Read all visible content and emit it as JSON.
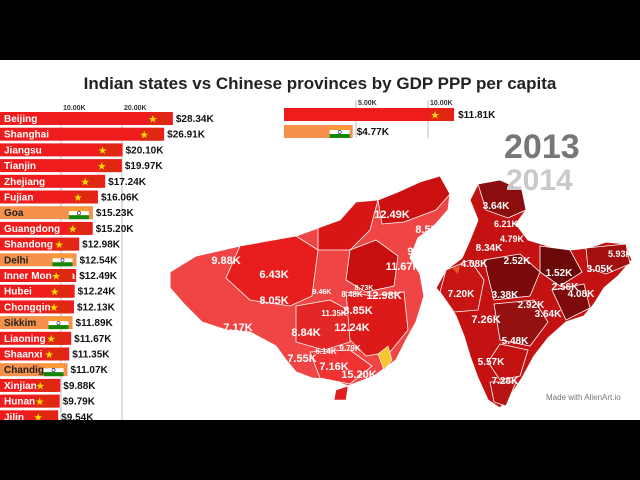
{
  "title": "Indian states vs Chinese provinces  by GDP PPP per capita",
  "years": {
    "current": "2013",
    "next": "2014"
  },
  "watermark": "Made with AlienArt.io",
  "colors": {
    "china": "#ee1c1c",
    "india": "#f5914a",
    "country_bar_china": "#ee1c1c",
    "country_bar_india": "#f5914a",
    "map_china_dark": "#b50d0d",
    "map_china_light": "#f04545",
    "map_india_dark": "#6e0a0a",
    "map_india_light": "#c41212"
  },
  "chart_data": [
    {
      "type": "bar",
      "orientation": "horizontal",
      "title": "Indian states vs Chinese provinces  by GDP PPP per capita",
      "x_ticks": [
        "10.00K",
        "20.00K"
      ],
      "x_tick_values": [
        10,
        20
      ],
      "unit": "K",
      "flag_icons": {
        "China": "china-flag-icon",
        "India": "india-flag-icon"
      },
      "bars": [
        {
          "name": "Beijing",
          "value": 28.34,
          "label": "$28.34K",
          "country": "China"
        },
        {
          "name": "Shanghai",
          "value": 26.91,
          "label": "$26.91K",
          "country": "China"
        },
        {
          "name": "Jiangsu",
          "value": 20.1,
          "label": "$20.10K",
          "country": "China"
        },
        {
          "name": "Tianjin",
          "value": 19.97,
          "label": "$19.97K",
          "country": "China"
        },
        {
          "name": "Zhejiang",
          "value": 17.24,
          "label": "$17.24K",
          "country": "China"
        },
        {
          "name": "Fujian",
          "value": 16.06,
          "label": "$16.06K",
          "country": "China"
        },
        {
          "name": "Goa",
          "value": 15.23,
          "label": "$15.23K",
          "country": "India"
        },
        {
          "name": "Guangdong",
          "value": 15.2,
          "label": "$15.20K",
          "country": "China"
        },
        {
          "name": "Shandong",
          "value": 12.98,
          "label": "$12.98K",
          "country": "China"
        },
        {
          "name": "Delhi",
          "value": 12.54,
          "label": "$12.54K",
          "country": "India"
        },
        {
          "name": "Inner Mongolia",
          "value": 12.49,
          "label": "$12.49K",
          "country": "China"
        },
        {
          "name": "Hubei",
          "value": 12.24,
          "label": "$12.24K",
          "country": "China"
        },
        {
          "name": "Chongqing",
          "value": 12.13,
          "label": "$12.13K",
          "country": "China"
        },
        {
          "name": "Sikkim",
          "value": 11.89,
          "label": "$11.89K",
          "country": "India"
        },
        {
          "name": "Liaoning",
          "value": 11.67,
          "label": "$11.67K",
          "country": "China"
        },
        {
          "name": "Shaanxi",
          "value": 11.35,
          "label": "$11.35K",
          "country": "China"
        },
        {
          "name": "Chandigarh",
          "value": 11.07,
          "label": "$11.07K",
          "country": "India"
        },
        {
          "name": "Xinjiang",
          "value": 9.88,
          "label": "$9.88K",
          "country": "China"
        },
        {
          "name": "Hunan",
          "value": 9.79,
          "label": "$9.79K",
          "country": "China"
        },
        {
          "name": "Jilin",
          "value": 9.54,
          "label": "$9.54K",
          "country": "China"
        }
      ]
    },
    {
      "type": "bar",
      "orientation": "horizontal",
      "x_ticks": [
        "5.00K",
        "10.00K"
      ],
      "x_tick_values": [
        5,
        10
      ],
      "unit": "K",
      "bars": [
        {
          "country": "China",
          "value": 11.81,
          "label": "$11.81K",
          "flag_icon": "china-flag-icon"
        },
        {
          "country": "India",
          "value": 4.77,
          "label": "$4.77K",
          "flag_icon": "india-flag-icon"
        }
      ]
    },
    {
      "type": "heatmap",
      "subtype": "choropleth-map",
      "regions": "China provinces and India states",
      "labels": [
        {
          "text": "12.49K",
          "value": 12.49,
          "country": "China"
        },
        {
          "text": "8.57K",
          "value": 8.57,
          "country": "China"
        },
        {
          "text": "9.54K",
          "value": 9.54,
          "country": "China"
        },
        {
          "text": "9.88K",
          "value": 9.88,
          "country": "China"
        },
        {
          "text": "11.67K",
          "value": 11.67,
          "country": "China"
        },
        {
          "text": "6.43K",
          "value": 6.43,
          "country": "China"
        },
        {
          "text": "8.05K",
          "value": 8.05,
          "country": "China"
        },
        {
          "text": "7.17K",
          "value": 7.17,
          "country": "China"
        },
        {
          "text": "8.84K",
          "value": 8.84,
          "country": "China"
        },
        {
          "text": "7.55K",
          "value": 7.55,
          "country": "China"
        },
        {
          "text": "7.16K",
          "value": 7.16,
          "country": "China"
        },
        {
          "text": "6.14K",
          "value": 6.14,
          "country": "China"
        },
        {
          "text": "9.79K",
          "value": 9.79,
          "country": "China"
        },
        {
          "text": "12.24K",
          "value": 12.24,
          "country": "China"
        },
        {
          "text": "11.35K",
          "value": 11.35,
          "country": "China"
        },
        {
          "text": "8.85K",
          "value": 8.85,
          "country": "China"
        },
        {
          "text": "12.98K",
          "value": 12.98,
          "country": "China"
        },
        {
          "text": "15.20K",
          "value": 15.2,
          "country": "China"
        },
        {
          "text": "8.48K",
          "value": 8.48,
          "country": "China"
        },
        {
          "text": "8.73K",
          "value": 8.73,
          "country": "China"
        },
        {
          "text": "9.46K",
          "value": 9.46,
          "country": "China"
        },
        {
          "text": "3.64K",
          "value": 3.64,
          "country": "India"
        },
        {
          "text": "6.21K",
          "value": 6.21,
          "country": "India"
        },
        {
          "text": "8.34K",
          "value": 8.34,
          "country": "India"
        },
        {
          "text": "4.79K",
          "value": 4.79,
          "country": "India"
        },
        {
          "text": "4.08K",
          "value": 4.08,
          "country": "India"
        },
        {
          "text": "2.52K",
          "value": 2.52,
          "country": "India"
        },
        {
          "text": "1.52K",
          "value": 1.52,
          "country": "India"
        },
        {
          "text": "3.05K",
          "value": 3.05,
          "country": "India"
        },
        {
          "text": "5.93K",
          "value": 5.93,
          "country": "India"
        },
        {
          "text": "7.20K",
          "value": 7.2,
          "country": "India"
        },
        {
          "text": "3.38K",
          "value": 3.38,
          "country": "India"
        },
        {
          "text": "2.56K",
          "value": 2.56,
          "country": "India"
        },
        {
          "text": "4.08K",
          "value": 4.08,
          "country": "India"
        },
        {
          "text": "2.92K",
          "value": 2.92,
          "country": "India"
        },
        {
          "text": "3.64K",
          "value": 3.64,
          "country": "India"
        },
        {
          "text": "7.26K",
          "value": 7.26,
          "country": "India"
        },
        {
          "text": "5.48K",
          "value": 5.48,
          "country": "India"
        },
        {
          "text": "5.57K",
          "value": 5.57,
          "country": "India"
        },
        {
          "text": "7.28K",
          "value": 7.28,
          "country": "India"
        }
      ]
    }
  ]
}
